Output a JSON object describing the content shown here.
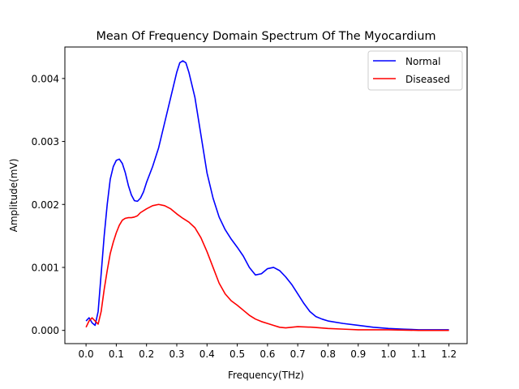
{
  "chart_data": {
    "type": "line",
    "title": "Mean Of Frequency Domain Spectrum Of The Myocardium",
    "xlabel": "Frequency(THz)",
    "ylabel": "Amplitude(mV)",
    "xlim": [
      -0.07,
      1.26
    ],
    "ylim": [
      -0.00021,
      0.0045
    ],
    "xticks": [
      0.0,
      0.1,
      0.2,
      0.3,
      0.4,
      0.5,
      0.6,
      0.7,
      0.8,
      0.9,
      1.0,
      1.1,
      1.2
    ],
    "xtick_labels": [
      "0.0",
      "0.1",
      "0.2",
      "0.3",
      "0.4",
      "0.5",
      "0.6",
      "0.7",
      "0.8",
      "0.9",
      "1.0",
      "1.1",
      "1.2"
    ],
    "yticks": [
      0.0,
      0.001,
      0.002,
      0.003,
      0.004
    ],
    "ytick_labels": [
      "0.000",
      "0.001",
      "0.002",
      "0.003",
      "0.004"
    ],
    "grid": false,
    "legend_position": "top-right",
    "series": [
      {
        "name": "Normal",
        "color": "#0000ff",
        "x": [
          0.0,
          0.01,
          0.02,
          0.03,
          0.04,
          0.05,
          0.06,
          0.07,
          0.08,
          0.09,
          0.1,
          0.11,
          0.12,
          0.13,
          0.14,
          0.15,
          0.16,
          0.17,
          0.18,
          0.19,
          0.2,
          0.22,
          0.24,
          0.26,
          0.28,
          0.3,
          0.31,
          0.32,
          0.33,
          0.34,
          0.36,
          0.38,
          0.4,
          0.42,
          0.44,
          0.46,
          0.48,
          0.5,
          0.52,
          0.54,
          0.56,
          0.58,
          0.6,
          0.62,
          0.64,
          0.66,
          0.68,
          0.7,
          0.72,
          0.74,
          0.76,
          0.78,
          0.8,
          0.85,
          0.9,
          0.95,
          1.0,
          1.05,
          1.1,
          1.15,
          1.2
        ],
        "y": [
          0.00015,
          0.0002,
          0.00012,
          8e-05,
          0.0003,
          0.0009,
          0.0015,
          0.002,
          0.0024,
          0.0026,
          0.0027,
          0.00272,
          0.00265,
          0.0025,
          0.0023,
          0.00215,
          0.00206,
          0.00205,
          0.0021,
          0.0022,
          0.00235,
          0.0026,
          0.0029,
          0.0033,
          0.0037,
          0.0041,
          0.00425,
          0.00428,
          0.00425,
          0.0041,
          0.0037,
          0.0031,
          0.0025,
          0.0021,
          0.0018,
          0.0016,
          0.00145,
          0.00132,
          0.00118,
          0.001,
          0.00088,
          0.0009,
          0.00098,
          0.001,
          0.00095,
          0.00085,
          0.00073,
          0.00058,
          0.00043,
          0.0003,
          0.00022,
          0.00018,
          0.00015,
          0.00011,
          8e-05,
          5e-05,
          3e-05,
          2e-05,
          1e-05,
          1e-05,
          1e-05
        ]
      },
      {
        "name": "Diseased",
        "color": "#ff0000",
        "x": [
          0.0,
          0.01,
          0.02,
          0.03,
          0.04,
          0.05,
          0.06,
          0.07,
          0.08,
          0.09,
          0.1,
          0.11,
          0.12,
          0.13,
          0.14,
          0.15,
          0.16,
          0.17,
          0.18,
          0.2,
          0.22,
          0.24,
          0.26,
          0.28,
          0.3,
          0.32,
          0.34,
          0.36,
          0.38,
          0.4,
          0.42,
          0.44,
          0.46,
          0.48,
          0.5,
          0.52,
          0.54,
          0.56,
          0.58,
          0.6,
          0.62,
          0.64,
          0.66,
          0.7,
          0.75,
          0.8,
          0.85,
          0.9,
          1.0,
          1.1,
          1.2
        ],
        "y": [
          5e-05,
          0.00015,
          0.0002,
          0.00015,
          0.0001,
          0.0003,
          0.00065,
          0.00095,
          0.00122,
          0.0014,
          0.00155,
          0.00167,
          0.00175,
          0.00178,
          0.00179,
          0.00179,
          0.0018,
          0.00182,
          0.00187,
          0.00193,
          0.00198,
          0.002,
          0.00198,
          0.00193,
          0.00185,
          0.00178,
          0.00172,
          0.00163,
          0.00147,
          0.00125,
          0.001,
          0.00075,
          0.00058,
          0.00047,
          0.0004,
          0.00032,
          0.00024,
          0.00018,
          0.00014,
          0.00011,
          8e-05,
          5e-05,
          4e-05,
          6e-05,
          5e-05,
          3e-05,
          2e-05,
          1e-05,
          1e-05,
          0.0,
          0.0
        ]
      }
    ]
  }
}
